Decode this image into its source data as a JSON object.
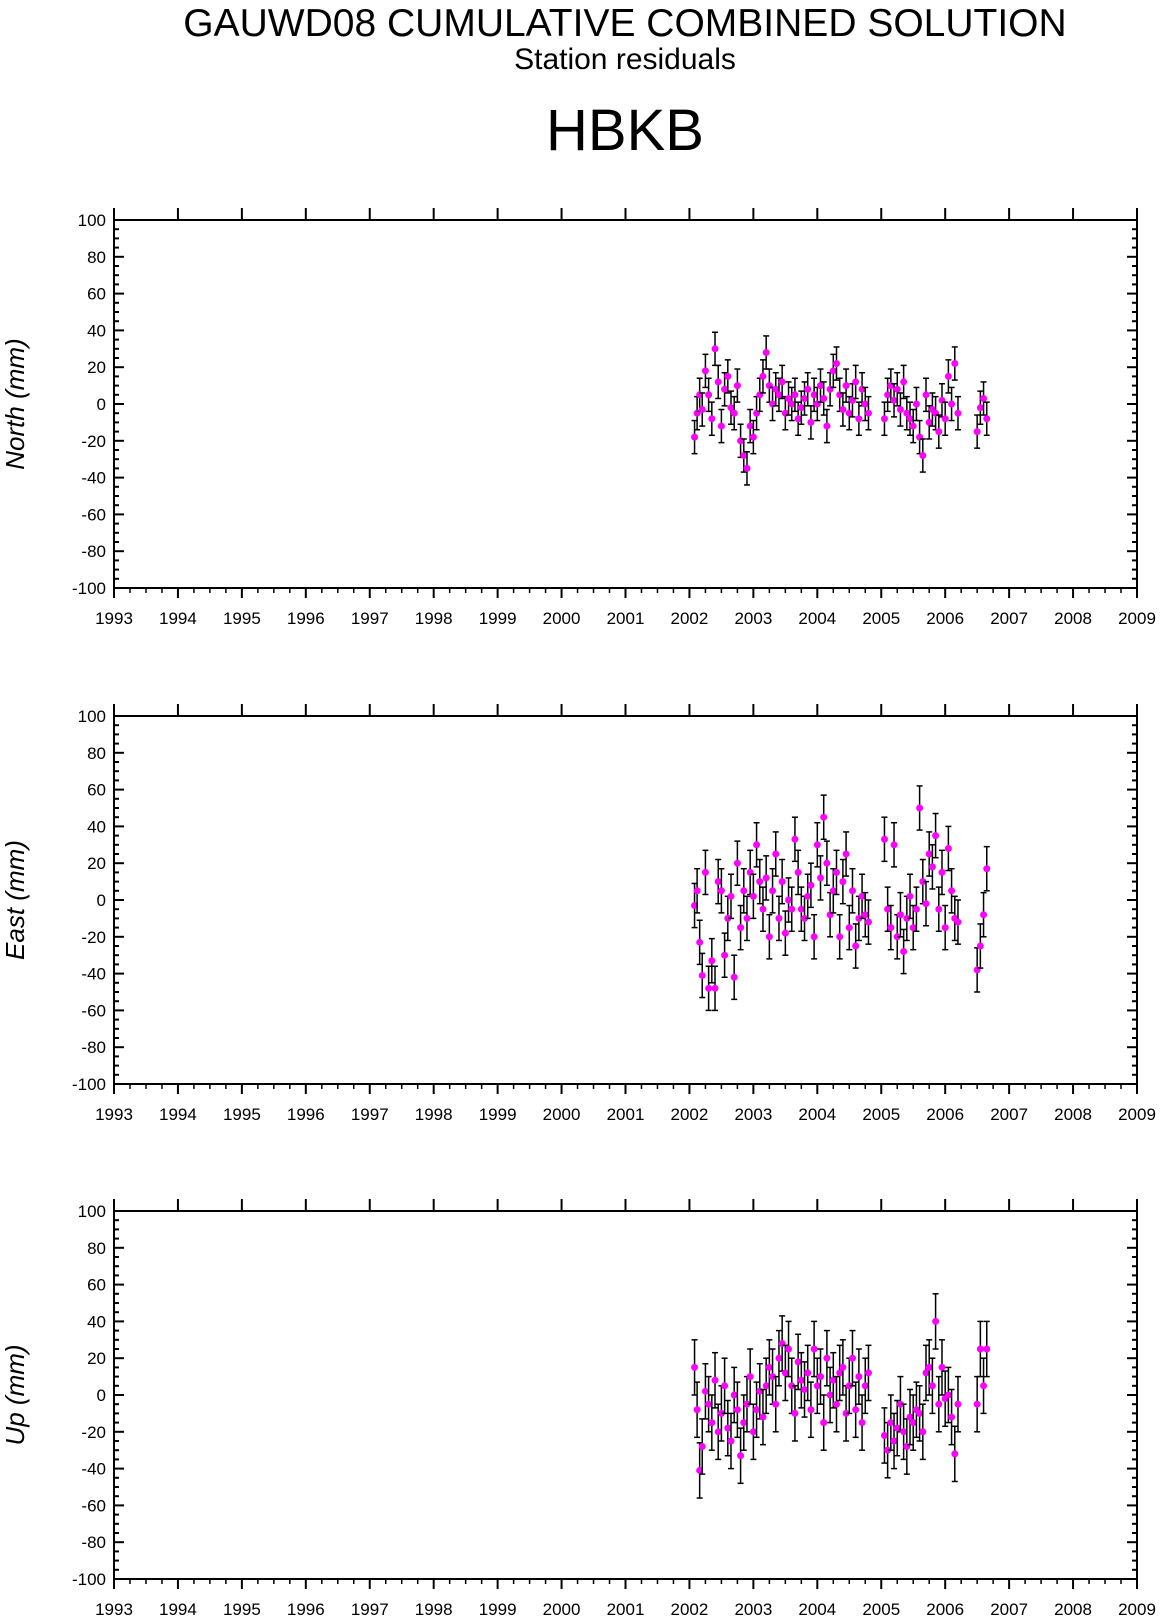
{
  "header": {
    "title": "GAUWD08 CUMULATIVE COMBINED SOLUTION",
    "subtitle": "Station residuals",
    "station": "HBKB"
  },
  "colors": {
    "marker": "#ff00ff",
    "error_bar": "#000000",
    "axes": "#000000"
  },
  "chart_data": [
    {
      "type": "scatter",
      "title": "",
      "xlabel": "",
      "ylabel": "North (mm)",
      "xlim": [
        1993,
        2009
      ],
      "ylim": [
        -100,
        100
      ],
      "x_ticks": [
        "1993",
        "1994",
        "1995",
        "1996",
        "1997",
        "1998",
        "1999",
        "2000",
        "2001",
        "2002",
        "2003",
        "2004",
        "2005",
        "2006",
        "2007",
        "2008",
        "2009"
      ],
      "y_ticks": [
        "100",
        "80",
        "60",
        "40",
        "20",
        "0",
        "-20",
        "-40",
        "-60",
        "-80",
        "-100"
      ],
      "grid": false,
      "error_bars": true,
      "series": [
        {
          "x": [
            2002.08,
            2002.12,
            2002.16,
            2002.2,
            2002.25,
            2002.3,
            2002.35,
            2002.4,
            2002.45,
            2002.5,
            2002.55,
            2002.6,
            2002.65,
            2002.7,
            2002.75,
            2002.8,
            2002.85,
            2002.9,
            2002.95,
            2003.0,
            2003.05,
            2003.1,
            2003.15,
            2003.2,
            2003.25,
            2003.3,
            2003.35,
            2003.4,
            2003.45,
            2003.5,
            2003.55,
            2003.6,
            2003.65,
            2003.7,
            2003.75,
            2003.8,
            2003.85,
            2003.9,
            2003.95,
            2004.0,
            2004.05,
            2004.1,
            2004.15,
            2004.2,
            2004.25,
            2004.3,
            2004.35,
            2004.4,
            2004.45,
            2004.5,
            2004.55,
            2004.6,
            2004.65,
            2004.7,
            2004.75,
            2004.8,
            2005.05,
            2005.1,
            2005.15,
            2005.2,
            2005.25,
            2005.3,
            2005.35,
            2005.4,
            2005.45,
            2005.5,
            2005.55,
            2005.6,
            2005.65,
            2005.7,
            2005.75,
            2005.8,
            2005.85,
            2005.9,
            2005.95,
            2006.0,
            2006.05,
            2006.1,
            2006.15,
            2006.2,
            2006.5,
            2006.55,
            2006.6,
            2006.65
          ],
          "y": [
            -18,
            -5,
            5,
            -3,
            18,
            5,
            -8,
            30,
            12,
            -12,
            8,
            15,
            -2,
            -5,
            10,
            -20,
            -28,
            -35,
            -12,
            -18,
            -5,
            5,
            15,
            28,
            10,
            0,
            8,
            5,
            12,
            -5,
            3,
            0,
            5,
            -8,
            -2,
            3,
            8,
            -10,
            5,
            0,
            10,
            3,
            -12,
            8,
            18,
            22,
            5,
            -3,
            10,
            -5,
            2,
            12,
            -8,
            8,
            0,
            -5,
            -8,
            5,
            10,
            2,
            8,
            -3,
            12,
            -5,
            -8,
            -12,
            0,
            -18,
            -28,
            5,
            -10,
            -3,
            -5,
            -15,
            2,
            -8,
            15,
            0,
            22,
            -5,
            -15,
            -2,
            3,
            -8
          ]
        }
      ]
    },
    {
      "type": "scatter",
      "title": "",
      "xlabel": "",
      "ylabel": "East (mm)",
      "xlim": [
        1993,
        2009
      ],
      "ylim": [
        -100,
        100
      ],
      "x_ticks": [
        "1993",
        "1994",
        "1995",
        "1996",
        "1997",
        "1998",
        "1999",
        "2000",
        "2001",
        "2002",
        "2003",
        "2004",
        "2005",
        "2006",
        "2007",
        "2008",
        "2009"
      ],
      "y_ticks": [
        "100",
        "80",
        "60",
        "40",
        "20",
        "0",
        "-20",
        "-40",
        "-60",
        "-80",
        "-100"
      ],
      "grid": false,
      "error_bars": true,
      "series": [
        {
          "x": [
            2002.08,
            2002.12,
            2002.16,
            2002.2,
            2002.25,
            2002.3,
            2002.35,
            2002.4,
            2002.45,
            2002.5,
            2002.55,
            2002.6,
            2002.65,
            2002.7,
            2002.75,
            2002.8,
            2002.85,
            2002.9,
            2002.95,
            2003.0,
            2003.05,
            2003.1,
            2003.15,
            2003.2,
            2003.25,
            2003.3,
            2003.35,
            2003.4,
            2003.45,
            2003.5,
            2003.55,
            2003.6,
            2003.65,
            2003.7,
            2003.75,
            2003.8,
            2003.85,
            2003.9,
            2003.95,
            2004.0,
            2004.05,
            2004.1,
            2004.15,
            2004.2,
            2004.25,
            2004.3,
            2004.35,
            2004.4,
            2004.45,
            2004.5,
            2004.55,
            2004.6,
            2004.65,
            2004.7,
            2004.75,
            2004.8,
            2005.05,
            2005.1,
            2005.15,
            2005.2,
            2005.25,
            2005.3,
            2005.35,
            2005.4,
            2005.45,
            2005.5,
            2005.55,
            2005.6,
            2005.65,
            2005.7,
            2005.75,
            2005.8,
            2005.85,
            2005.9,
            2005.95,
            2006.0,
            2006.05,
            2006.1,
            2006.15,
            2006.2,
            2006.5,
            2006.55,
            2006.6,
            2006.65
          ],
          "y": [
            -3,
            5,
            -23,
            -41,
            15,
            -48,
            -33,
            -48,
            10,
            5,
            -30,
            -10,
            2,
            -42,
            20,
            -15,
            5,
            -10,
            15,
            2,
            30,
            10,
            -5,
            12,
            -20,
            5,
            25,
            -10,
            10,
            -18,
            0,
            -5,
            33,
            15,
            -5,
            -10,
            2,
            8,
            -20,
            30,
            12,
            45,
            20,
            -8,
            5,
            15,
            -20,
            10,
            25,
            -15,
            5,
            -25,
            -10,
            2,
            -8,
            -12,
            33,
            -5,
            -15,
            30,
            -20,
            -8,
            -28,
            -10,
            2,
            -15,
            -5,
            50,
            10,
            -2,
            25,
            18,
            35,
            -5,
            15,
            -15,
            28,
            5,
            -10,
            -12,
            -38,
            -25,
            -8,
            17
          ]
        }
      ]
    },
    {
      "type": "scatter",
      "title": "",
      "xlabel": "",
      "ylabel": "Up (mm)",
      "xlim": [
        1993,
        2009
      ],
      "ylim": [
        -100,
        100
      ],
      "x_ticks": [
        "1993",
        "1994",
        "1995",
        "1996",
        "1997",
        "1998",
        "1999",
        "2000",
        "2001",
        "2002",
        "2003",
        "2004",
        "2005",
        "2006",
        "2007",
        "2008",
        "2009"
      ],
      "y_ticks": [
        "100",
        "80",
        "60",
        "40",
        "20",
        "0",
        "-20",
        "-40",
        "-60",
        "-80",
        "-100"
      ],
      "grid": false,
      "error_bars": true,
      "series": [
        {
          "x": [
            2002.08,
            2002.12,
            2002.16,
            2002.2,
            2002.25,
            2002.3,
            2002.35,
            2002.4,
            2002.45,
            2002.5,
            2002.55,
            2002.6,
            2002.65,
            2002.7,
            2002.75,
            2002.8,
            2002.85,
            2002.9,
            2002.95,
            2003.0,
            2003.05,
            2003.1,
            2003.15,
            2003.2,
            2003.25,
            2003.3,
            2003.35,
            2003.4,
            2003.45,
            2003.5,
            2003.55,
            2003.6,
            2003.65,
            2003.7,
            2003.75,
            2003.8,
            2003.85,
            2003.9,
            2003.95,
            2004.0,
            2004.05,
            2004.1,
            2004.15,
            2004.2,
            2004.25,
            2004.3,
            2004.35,
            2004.4,
            2004.45,
            2004.5,
            2004.55,
            2004.6,
            2004.65,
            2004.7,
            2004.75,
            2004.8,
            2005.05,
            2005.1,
            2005.15,
            2005.2,
            2005.25,
            2005.3,
            2005.35,
            2005.4,
            2005.45,
            2005.5,
            2005.55,
            2005.6,
            2005.65,
            2005.7,
            2005.75,
            2005.8,
            2005.85,
            2005.9,
            2005.95,
            2006.0,
            2006.05,
            2006.1,
            2006.15,
            2006.2,
            2006.5,
            2006.55,
            2006.6,
            2006.65
          ],
          "y": [
            15,
            -8,
            -41,
            -28,
            2,
            -5,
            -15,
            8,
            -20,
            -10,
            5,
            -18,
            -25,
            0,
            -8,
            -33,
            -15,
            -5,
            10,
            -20,
            -8,
            2,
            -12,
            5,
            15,
            10,
            -5,
            20,
            28,
            12,
            25,
            5,
            -10,
            18,
            8,
            3,
            12,
            -8,
            25,
            5,
            10,
            -15,
            20,
            0,
            8,
            -5,
            12,
            15,
            -10,
            5,
            20,
            -8,
            10,
            -15,
            5,
            12,
            -22,
            -30,
            -15,
            -25,
            -18,
            -5,
            -20,
            -28,
            -12,
            -15,
            -8,
            -10,
            -20,
            12,
            15,
            5,
            40,
            -5,
            15,
            -2,
            0,
            -12,
            -32,
            -5,
            -5,
            25,
            5,
            25
          ]
        }
      ]
    }
  ]
}
